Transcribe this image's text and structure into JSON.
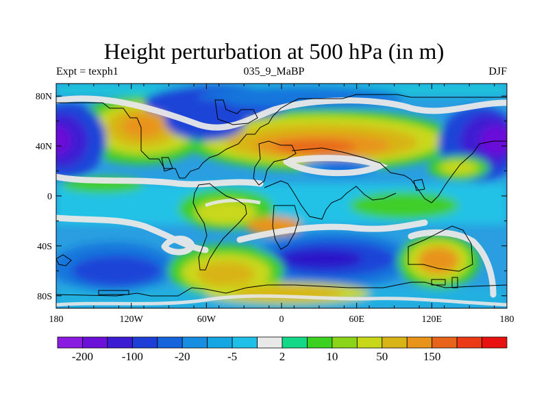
{
  "title": "Height perturbation at 500 hPa (in m)",
  "subtitle_left": "Expt = texph1",
  "subtitle_center": "035_9_MaBP",
  "subtitle_right": "DJF",
  "map": {
    "lon_ticks": [
      "180",
      "120W",
      "60W",
      "0",
      "60E",
      "120E",
      "180"
    ],
    "lat_ticks": [
      "80N",
      "40N",
      "0",
      "40S",
      "80S"
    ]
  },
  "colorbar": {
    "labels": [
      "-200",
      "-100",
      "-20",
      "-5",
      "2",
      "10",
      "50",
      "150"
    ],
    "colors": [
      "#8a1be0",
      "#6a10d8",
      "#3c1cd2",
      "#1e3ed8",
      "#1664dc",
      "#178ee2",
      "#16a6e2",
      "#1fc0e8",
      "#e8e8e8",
      "#12d888",
      "#3cd020",
      "#8cd41a",
      "#c8d818",
      "#d8b416",
      "#e8941a",
      "#e8641a",
      "#ec3a16",
      "#e81010"
    ]
  },
  "colors": {
    "ocean_base": "#2a9ee0",
    "coastline": "#000000"
  }
}
